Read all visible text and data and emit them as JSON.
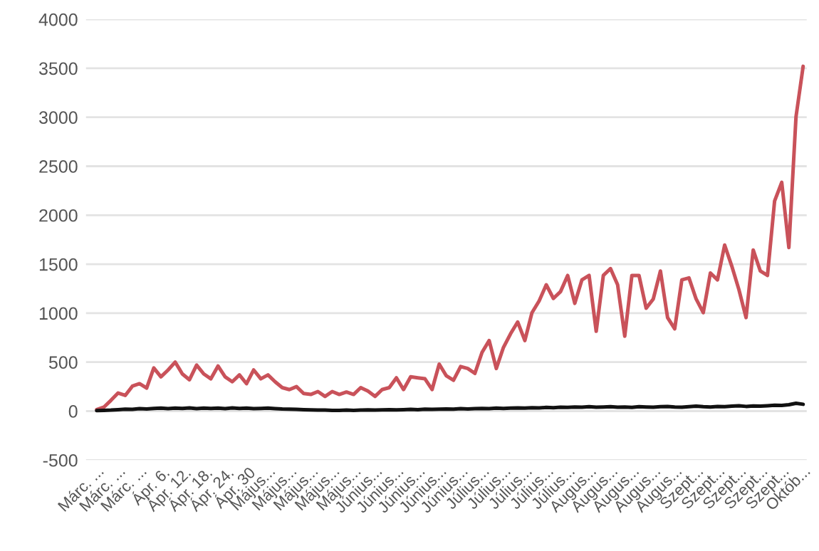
{
  "chart_data": {
    "type": "line",
    "categories": [
      "Márc. ...",
      null,
      null,
      "Márc. ...",
      null,
      null,
      "Márc. ...",
      null,
      null,
      "Ápr. 6.",
      null,
      null,
      "Ápr. 12.",
      null,
      null,
      "Ápr. 18.",
      null,
      null,
      "Ápr. 24.",
      null,
      null,
      "Ápr. 30",
      null,
      null,
      "Május...",
      null,
      null,
      "Május...",
      null,
      null,
      "Május...",
      null,
      null,
      "Május...",
      null,
      null,
      "Május...",
      null,
      null,
      "Június...",
      null,
      null,
      "Június...",
      null,
      null,
      "Június...",
      null,
      null,
      "Június...",
      null,
      null,
      "Június...",
      null,
      null,
      "Július...",
      null,
      null,
      "Július...",
      null,
      null,
      "Július...",
      null,
      null,
      "Július...",
      null,
      null,
      "Július...",
      null,
      null,
      "Augus...",
      null,
      null,
      "Augus...",
      null,
      null,
      "Augus...",
      null,
      null,
      "Augus...",
      null,
      null,
      "Augus...",
      null,
      null,
      "Szept...",
      null,
      null,
      "Szept...",
      null,
      null,
      "Szept...",
      null,
      null,
      "Szept...",
      null,
      null,
      "Szept...",
      null,
      null,
      "Októb..."
    ],
    "series": [
      {
        "color": "#c9525a",
        "values": [
          15,
          40,
          110,
          185,
          160,
          255,
          280,
          235,
          440,
          350,
          420,
          500,
          380,
          320,
          470,
          380,
          330,
          460,
          350,
          300,
          370,
          280,
          420,
          330,
          370,
          300,
          240,
          220,
          250,
          180,
          170,
          200,
          150,
          200,
          170,
          195,
          170,
          240,
          205,
          150,
          220,
          240,
          340,
          220,
          350,
          340,
          330,
          220,
          480,
          360,
          315,
          455,
          435,
          385,
          600,
          720,
          435,
          650,
          790,
          910,
          720,
          1005,
          1125,
          1290,
          1150,
          1220,
          1385,
          1100,
          1340,
          1385,
          815,
          1385,
          1455,
          1290,
          765,
          1385,
          1385,
          1050,
          1145,
          1430,
          955,
          840,
          1340,
          1360,
          1145,
          1005,
          1410,
          1340,
          1695,
          1480,
          1240,
          955,
          1645,
          1430,
          1385,
          2145,
          2335,
          1670,
          3005,
          3520
        ]
      },
      {
        "color": "#111111",
        "values": [
          5,
          8,
          10,
          15,
          20,
          18,
          25,
          22,
          28,
          30,
          25,
          30,
          28,
          32,
          25,
          30,
          28,
          30,
          26,
          32,
          28,
          30,
          25,
          28,
          30,
          26,
          22,
          20,
          18,
          15,
          12,
          10,
          10,
          8,
          8,
          10,
          8,
          10,
          12,
          10,
          12,
          15,
          12,
          15,
          18,
          15,
          20,
          18,
          20,
          22,
          20,
          25,
          22,
          25,
          28,
          25,
          30,
          28,
          30,
          32,
          30,
          35,
          32,
          38,
          35,
          40,
          38,
          42,
          40,
          45,
          40,
          42,
          45,
          40,
          42,
          38,
          45,
          42,
          40,
          45,
          48,
          42,
          40,
          45,
          50,
          45,
          42,
          48,
          45,
          50,
          55,
          48,
          52,
          50,
          55,
          60,
          58,
          65,
          80,
          70
        ]
      }
    ],
    "ylim": [
      -500,
      4000
    ],
    "yticks": [
      -500,
      0,
      500,
      1000,
      1500,
      2000,
      2500,
      3000,
      3500,
      4000
    ],
    "grid": "y"
  }
}
